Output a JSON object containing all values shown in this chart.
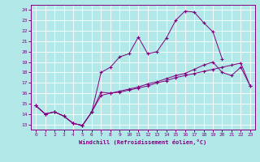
{
  "xlabel": "Windchill (Refroidissement éolien,°C)",
  "x": [
    0,
    1,
    2,
    3,
    4,
    5,
    6,
    7,
    8,
    9,
    10,
    11,
    12,
    13,
    14,
    15,
    16,
    17,
    18,
    19,
    20,
    21,
    22,
    23
  ],
  "line1": [
    14.8,
    14.0,
    14.2,
    13.8,
    13.1,
    12.9,
    14.2,
    15.8,
    16.0,
    16.1,
    16.3,
    16.5,
    16.7,
    17.0,
    17.2,
    17.5,
    17.7,
    17.9,
    18.1,
    18.3,
    18.5,
    18.7,
    18.9,
    16.7
  ],
  "line2": [
    14.8,
    14.0,
    14.2,
    13.8,
    13.1,
    12.9,
    14.2,
    18.0,
    18.5,
    19.5,
    19.8,
    21.4,
    19.8,
    20.0,
    21.3,
    23.0,
    23.9,
    23.8,
    22.8,
    21.9,
    19.3,
    null,
    null,
    null
  ],
  "line3": [
    14.8,
    14.0,
    14.2,
    13.8,
    13.1,
    12.9,
    14.2,
    16.1,
    16.0,
    16.2,
    16.4,
    16.6,
    16.9,
    17.1,
    17.4,
    17.7,
    17.9,
    18.3,
    18.7,
    19.0,
    18.0,
    17.7,
    18.5,
    16.7
  ],
  "line_color": "#800080",
  "bg_color": "#b2e8e8",
  "grid_color": "#ffffff",
  "ylim": [
    12.5,
    24.5
  ],
  "xlim": [
    -0.5,
    23.5
  ],
  "yticks": [
    13,
    14,
    15,
    16,
    17,
    18,
    19,
    20,
    21,
    22,
    23,
    24
  ],
  "xticks": [
    0,
    1,
    2,
    3,
    4,
    5,
    6,
    7,
    8,
    9,
    10,
    11,
    12,
    13,
    14,
    15,
    16,
    17,
    18,
    19,
    20,
    21,
    22,
    23
  ]
}
